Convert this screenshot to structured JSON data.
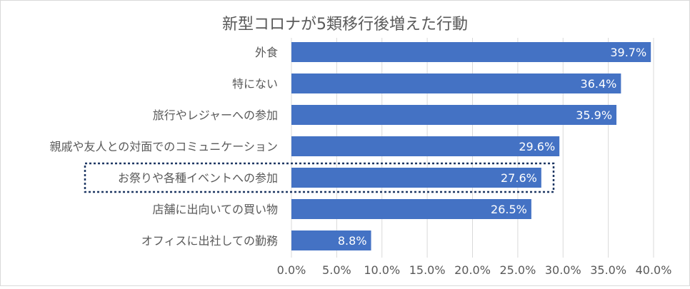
{
  "chart_data": {
    "type": "bar",
    "orientation": "horizontal",
    "title": "新型コロナが5類移行後増えた行動",
    "xlabel": "",
    "ylabel": "",
    "xlim": [
      0,
      40
    ],
    "x_ticks": [
      "0.0%",
      "5.0%",
      "10.0%",
      "15.0%",
      "20.0%",
      "25.0%",
      "30.0%",
      "35.0%",
      "40.0%"
    ],
    "grid": "vertical",
    "categories": [
      "外食",
      "特にない",
      "旅行やレジャーへの参加",
      "親戚や友人との対面でのコミュニケーション",
      "お祭りや各種イベントへの参加",
      "店舗に出向いての買い物",
      "オフィスに出社しての勤務"
    ],
    "values": [
      39.7,
      36.4,
      35.9,
      29.6,
      27.6,
      26.5,
      8.8
    ],
    "data_labels": [
      "39.7%",
      "36.4%",
      "35.9%",
      "29.6%",
      "27.6%",
      "26.5%",
      "8.8%"
    ],
    "highlighted_category": "お祭りや各種イベントへの参加",
    "bar_color": "#4472c4",
    "highlight_color": "#1f3864"
  }
}
